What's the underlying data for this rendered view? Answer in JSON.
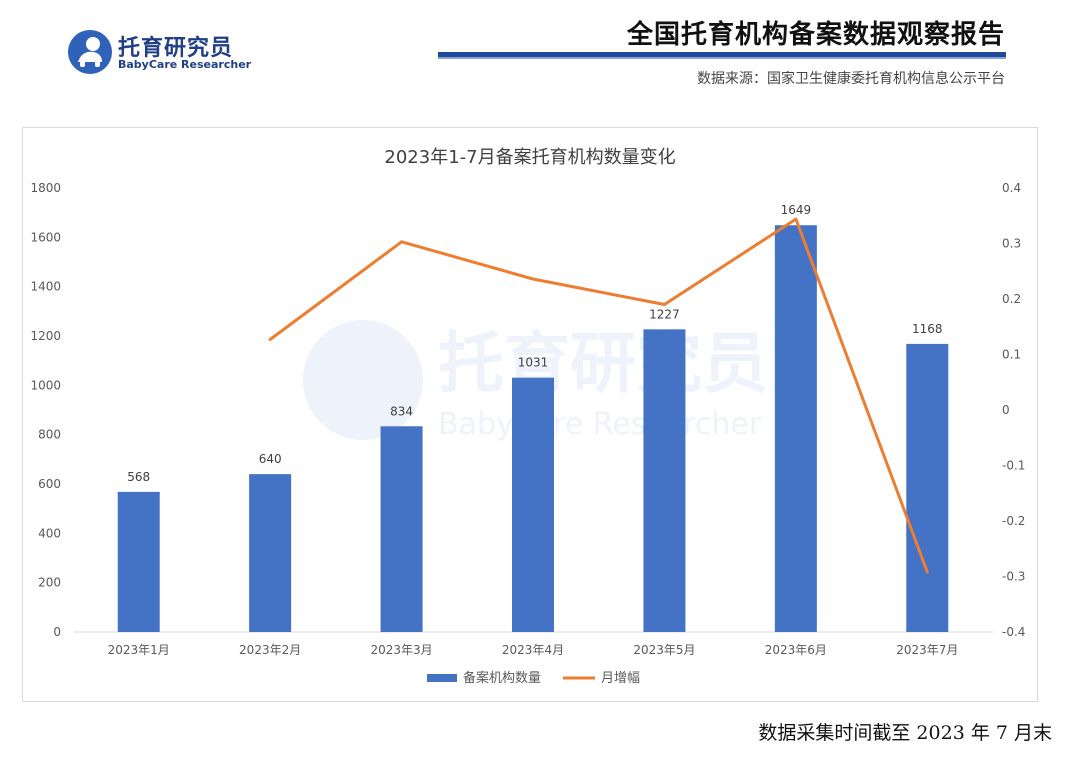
{
  "header": {
    "logo_cn": "托育研究员",
    "logo_en": "BabyCare Researcher",
    "report_title": "全国托育机构备案数据观察报告",
    "source": "数据来源：国家卫生健康委托育机构信息公示平台"
  },
  "footnote": "数据采集时间截至 2023 年 7 月末",
  "watermark": {
    "cn": "托育研究员",
    "en": "BabyCare Researcher"
  },
  "colors": {
    "bar": "#4472c4",
    "line": "#ed7d31",
    "brand": "#1f4a9b"
  },
  "chart_data": {
    "type": "bar",
    "title": "2023年1-7月备案托育机构数量变化",
    "categories": [
      "2023年1月",
      "2023年2月",
      "2023年3月",
      "2023年4月",
      "2023年5月",
      "2023年6月",
      "2023年7月"
    ],
    "series": [
      {
        "name": "备案机构数量",
        "type": "bar",
        "axis": "left",
        "values": [
          568,
          640,
          834,
          1031,
          1227,
          1649,
          1168
        ]
      },
      {
        "name": "月增幅",
        "type": "line",
        "axis": "right",
        "values": [
          null,
          0.127,
          0.303,
          0.236,
          0.19,
          0.344,
          -0.292
        ]
      }
    ],
    "ylim": [
      0,
      1800
    ],
    "yticks": [
      0,
      200,
      400,
      600,
      800,
      1000,
      1200,
      1400,
      1600,
      1800
    ],
    "y2lim": [
      -0.4,
      0.4
    ],
    "y2ticks": [
      "0.4",
      "0.3",
      "0.2",
      "0.1",
      "0",
      "-0.1",
      "-0.2",
      "-0.3",
      "-0.4"
    ],
    "legend": "bottom",
    "grid": false
  }
}
